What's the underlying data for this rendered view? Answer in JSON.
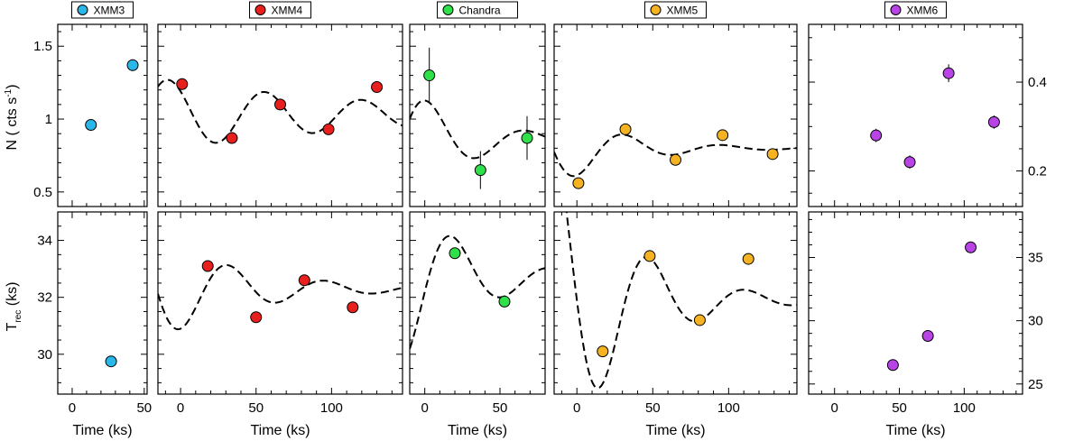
{
  "chart_data": {
    "type": "scatter",
    "xlabel": "Time (ks)",
    "ylabel_top": "N ( cts s",
    "ylabel_top_sup": "-1",
    "ylabel_top_end": ")",
    "ylabel_bottom": "T",
    "ylabel_bottom_sub": "rec",
    "ylabel_bottom_end": " (ks)",
    "rows": {
      "top": {
        "ylim_left": [
          0.4,
          1.65
        ],
        "yticks_left": [
          0.5,
          1,
          1.5
        ],
        "yticklabels_left": [
          "0.5",
          "1",
          "1.5"
        ],
        "ylim_right": [
          0.12,
          0.53
        ],
        "yticks_right": [
          0.2,
          0.4
        ],
        "yticklabels_right": [
          "0.2",
          "0.4"
        ]
      },
      "bottom": {
        "ylim_left": [
          28.6,
          35.0
        ],
        "yticks_left": [
          30,
          32,
          34
        ],
        "yticklabels_left": [
          "30",
          "32",
          "34"
        ],
        "ylim_right": [
          24.2,
          38.6
        ],
        "yticks_right": [
          25,
          30,
          35
        ],
        "yticklabels_right": [
          "25",
          "30",
          "35"
        ]
      }
    },
    "panels": [
      {
        "name": "XMM3",
        "color": "#29b6e8",
        "xlim": [
          -10,
          52
        ],
        "xticks": [
          0,
          50
        ],
        "xticklabels": [
          "0",
          "50"
        ],
        "top": {
          "x": [
            13,
            42
          ],
          "y": [
            0.96,
            1.37
          ],
          "err": [
            0.03,
            0.04
          ]
        },
        "bottom": {
          "x": [
            27
          ],
          "y": [
            29.75
          ]
        }
      },
      {
        "name": "XMM4",
        "color": "#e8201d",
        "xlim": [
          -15,
          147
        ],
        "xticks": [
          0,
          50,
          100
        ],
        "xticklabels": [
          "0",
          "50",
          "100"
        ],
        "top": {
          "x": [
            1,
            34,
            66,
            98,
            130
          ],
          "y": [
            1.24,
            0.87,
            1.1,
            0.93,
            1.22
          ],
          "err": [
            0.03,
            0.03,
            0.03,
            0.03,
            0.03
          ],
          "model": {
            "base": 1.03,
            "amp": 0.25,
            "tau": 150,
            "period": 64,
            "phase": -8
          }
        },
        "bottom": {
          "x": [
            18,
            50,
            82,
            114
          ],
          "y": [
            33.1,
            31.3,
            32.6,
            31.65
          ],
          "model": {
            "base": 32.3,
            "amp": -1.8,
            "tau": 60,
            "period": 64,
            "phase": 0
          }
        }
      },
      {
        "name": "Chandra",
        "color": "#2ee04a",
        "xlim": [
          -10,
          80
        ],
        "xticks": [
          0,
          50
        ],
        "xticklabels": [
          "0",
          "50"
        ],
        "top": {
          "x": [
            3,
            37,
            68
          ],
          "y": [
            1.3,
            0.65,
            0.87
          ],
          "err": [
            0.19,
            0.13,
            0.15
          ],
          "model": {
            "base": 0.86,
            "amp": 0.34,
            "tau": 45,
            "period": 66,
            "phase": 2
          }
        },
        "bottom": {
          "x": [
            20,
            53
          ],
          "y": [
            33.55,
            31.85
          ],
          "model": {
            "base": 32.7,
            "amp": -2.7,
            "tau": 45,
            "period": 66,
            "phase": -14
          }
        }
      },
      {
        "name": "XMM5",
        "color": "#f5b321",
        "xlim": [
          -15,
          145
        ],
        "xticks": [
          0,
          50,
          100
        ],
        "xticklabels": [
          "0",
          "50",
          "100"
        ],
        "top": {
          "x": [
            1,
            32,
            65,
            96,
            129
          ],
          "y": [
            0.56,
            0.93,
            0.72,
            0.89,
            0.76
          ],
          "model": {
            "base": 0.8,
            "amp": -0.26,
            "tau": 45,
            "period": 64,
            "phase": 0
          }
        },
        "bottom": {
          "x": [
            17,
            48,
            81,
            113
          ],
          "y": [
            30.1,
            33.45,
            31.2,
            33.35
          ],
          "model": {
            "base": 31.9,
            "amp": 6.0,
            "tau": 45,
            "period": 64,
            "phase": -16
          }
        }
      },
      {
        "name": "XMM6",
        "color": "#b844e6",
        "xlim": [
          -20,
          145
        ],
        "xticks": [
          0,
          50,
          100
        ],
        "xticklabels": [
          "0",
          "50",
          "100"
        ],
        "yaxis": "right",
        "top": {
          "x": [
            32,
            58,
            88,
            123
          ],
          "y": [
            0.28,
            0.22,
            0.42,
            0.31
          ],
          "err": [
            0.015,
            0.015,
            0.02,
            0.015
          ]
        },
        "bottom": {
          "x": [
            45,
            72,
            105
          ],
          "y": [
            26.5,
            28.8,
            35.8
          ]
        }
      }
    ]
  }
}
